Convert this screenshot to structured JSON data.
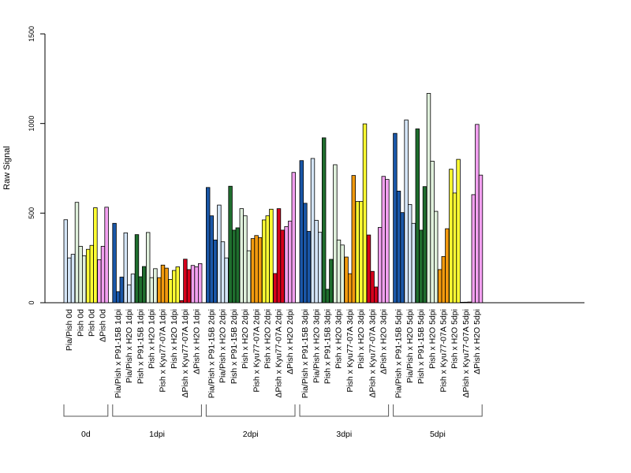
{
  "chart_data": {
    "type": "bar",
    "ylabel": "Raw Signal",
    "ylim": [
      0,
      1500
    ],
    "yticks": [
      "0",
      "500",
      "1000",
      "1500"
    ],
    "grid": false,
    "groups": [
      {
        "label": "0d",
        "categories": [
          {
            "label": "Pia/Pish 0d",
            "values": [
              463,
              250,
              270
            ]
          },
          {
            "label": "Pish 0d",
            "values": [
              560,
              315,
              262
            ]
          },
          {
            "label": "Pish 0d",
            "values": [
              298,
              320,
              530
            ]
          },
          {
            "label": "ΔPish 0d",
            "values": [
              240,
              315,
              533
            ]
          }
        ]
      },
      {
        "label": "1dpi",
        "categories": [
          {
            "label": "Pia/Pish x P91-15B 1dpi",
            "values": [
              443,
              62,
              143
            ]
          },
          {
            "label": "Pia/Pish x H2O 1dpi",
            "values": [
              390,
              100,
              160
            ]
          },
          {
            "label": "Pish x P91-15B 1dpi",
            "values": [
              380,
              145,
              202
            ]
          },
          {
            "label": "Pish x H2O 1dpi",
            "values": [
              392,
              140,
              190
            ]
          },
          {
            "label": "Pish x Kyu77-07A 1dpi",
            "values": [
              140,
              210,
              193
            ]
          },
          {
            "label": "Pish x H2O 1dpi",
            "values": [
              130,
              180,
              200
            ]
          },
          {
            "label": "ΔPish x Kyu77-07A 1dpi",
            "values": [
              12,
              243,
              185
            ]
          },
          {
            "label": "ΔPish x H2O 1dpi",
            "values": [
              208,
              200,
              218
            ]
          }
        ]
      },
      {
        "label": "2dpi",
        "categories": [
          {
            "label": "Pia/Pish x P91-15B 2dpi",
            "values": [
              643,
              485,
              350
            ]
          },
          {
            "label": "Pia/Pish x H2O 2dpi",
            "values": [
              545,
              340,
              250
            ]
          },
          {
            "label": "Pish x P91-15B 2dpi",
            "values": [
              650,
              405,
              418
            ]
          },
          {
            "label": "Pish x H2O 2dpi",
            "values": [
              525,
              485,
              290
            ]
          },
          {
            "label": "Pish x Kyu77-07A 2dpi",
            "values": [
              358,
              375,
              363
            ]
          },
          {
            "label": "Pish x H2O 2dpi",
            "values": [
              462,
              485,
              522
            ]
          },
          {
            "label": "ΔPish x Kyu77-07A 2dpi",
            "values": [
              163,
              525,
              405
            ]
          },
          {
            "label": "ΔPish x H2O 2dpi",
            "values": [
              425,
              455,
              727
            ]
          }
        ]
      },
      {
        "label": "3dpi",
        "categories": [
          {
            "label": "Pia/Pish x P91-15B 3dpi",
            "values": [
              793,
              555,
              398
            ]
          },
          {
            "label": "Pia/Pish x H2O 3dpi",
            "values": [
              805,
              460,
              393
            ]
          },
          {
            "label": "Pish x P91-15B 3dpi",
            "values": [
              920,
              75,
              242
            ]
          },
          {
            "label": "Pish x H2O 3dpi",
            "values": [
              770,
              350,
              322
            ]
          },
          {
            "label": "Pish x Kyu77-07A 3dpi",
            "values": [
              255,
              162,
              710
            ]
          },
          {
            "label": "Pish x H2O 3dpi",
            "values": [
              565,
              565,
              998
            ]
          },
          {
            "label": "ΔPish x Kyu77-07A 3dpi",
            "values": [
              378,
              175,
              88
            ]
          },
          {
            "label": "ΔPish x H2O 3dpi",
            "values": [
              420,
              705,
              688
            ]
          }
        ]
      },
      {
        "label": "5dpi",
        "categories": [
          {
            "label": "Pia/Pish x P91-15B 5dpi",
            "values": [
              945,
              623,
              503
            ]
          },
          {
            "label": "Pia/Pish x H2O 5dpi",
            "values": [
              1020,
              548,
              443
            ]
          },
          {
            "label": "Pish x P91-15B 5dpi",
            "values": [
              970,
              405,
              648
            ]
          },
          {
            "label": "Pish x H2O 5dpi",
            "values": [
              1168,
              790,
              510
            ]
          },
          {
            "label": "Pish x Kyu77-07A 5dpi",
            "values": [
              185,
              258,
              413
            ]
          },
          {
            "label": "Pish x H2O 5dpi",
            "values": [
              745,
              612,
              800
            ]
          },
          {
            "label": "ΔPish x Kyu77-07A 5dpi",
            "values": [
              2,
              3,
              4
            ]
          },
          {
            "label": "ΔPish x H2O 5dpi",
            "values": [
              603,
              995,
              712
            ]
          }
        ]
      }
    ],
    "colors": {
      "Pia/Pish": "#1a57a8",
      "Pia/Pish light": "#d4e5f7",
      "Pish": "#1f6e2e",
      "Pish light": "#e0f1dc",
      "Pish orange": "#f29a0e",
      "Pish yellow": "#ffff33",
      "ΔPish red": "#d6001c",
      "ΔPish pink": "#f2a0f0",
      "outline": "#000000"
    }
  }
}
